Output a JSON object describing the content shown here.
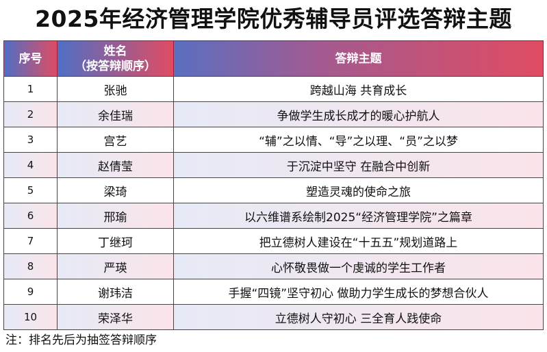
{
  "title": "2025年经济管理学院优秀辅导员评选答辩主题",
  "colors": {
    "header_start": "#4f6fc6",
    "header_end": "#e04c62",
    "row_alt_start": "#e6eaf6",
    "row_alt_end": "#fbe4ea"
  },
  "table": {
    "headers": {
      "index": "序号",
      "name_line1": "姓名",
      "name_line2": "（按答辩顺序）",
      "topic": "答辩主题"
    },
    "rows": [
      {
        "index": "1",
        "name": "张驰",
        "topic": "跨越山海  共育成长"
      },
      {
        "index": "2",
        "name": "余佳瑞",
        "topic": "争做学生成长成才的暖心护航人"
      },
      {
        "index": "3",
        "name": "宫艺",
        "topic": "“辅”之以情、“导”之以理、“员”之以梦"
      },
      {
        "index": "4",
        "name": "赵倩莹",
        "topic": "于沉淀中坚守  在融合中创新"
      },
      {
        "index": "5",
        "name": "梁琦",
        "topic": "塑造灵魂的使命之旅"
      },
      {
        "index": "6",
        "name": "邢瑜",
        "topic": "以六维谱系绘制2025“经济管理学院”之篇章"
      },
      {
        "index": "7",
        "name": "丁继珂",
        "topic": "把立德树人建设在“十五五”规划道路上"
      },
      {
        "index": "8",
        "name": "严瑛",
        "topic": "心怀敬畏做一个虔诚的学生工作者"
      },
      {
        "index": "9",
        "name": "谢玮洁",
        "topic": "手握“四镜”坚守初心  做助力学生成长的梦想合伙人"
      },
      {
        "index": "10",
        "name": "荣泽华",
        "topic": "立德树人守初心  三全育人践使命"
      }
    ]
  },
  "note": "注：排名先后为抽签答辩顺序"
}
